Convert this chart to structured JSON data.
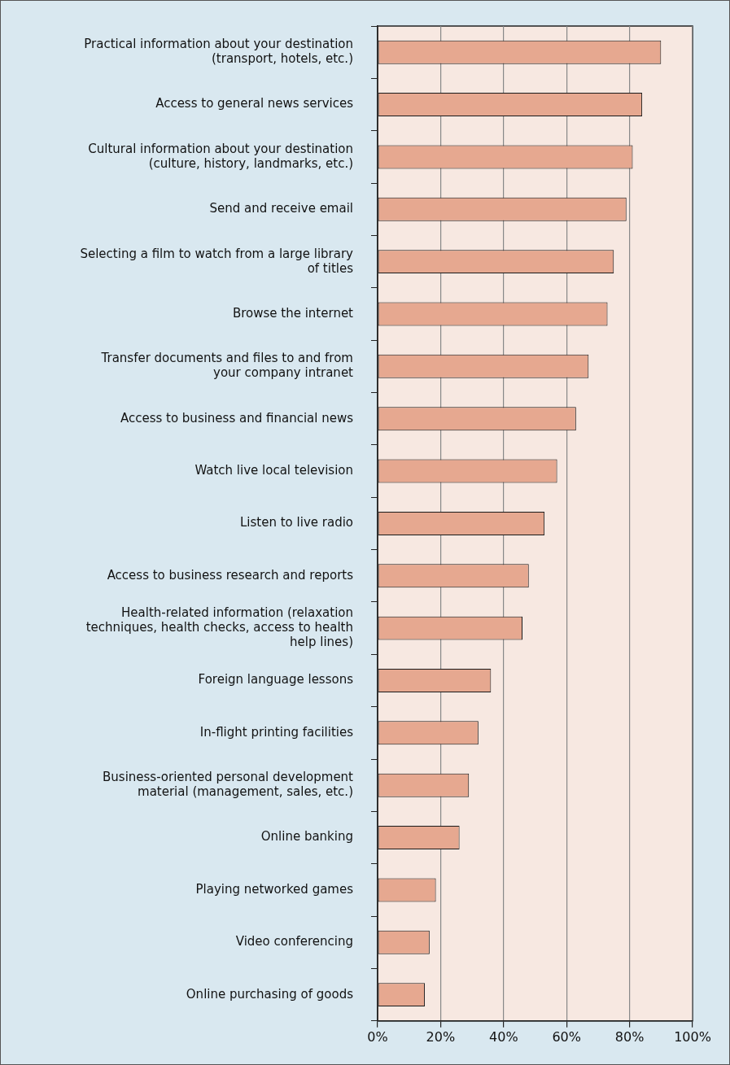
{
  "chart_data": {
    "type": "bar",
    "orientation": "horizontal",
    "categories": [
      "Practical information about your destination (transport, hotels, etc.)",
      "Access to general news services",
      "Cultural information about your destination (culture, history, landmarks, etc.)",
      "Send and receive email",
      "Selecting a film to watch from a large library of titles",
      "Browse the internet",
      "Transfer documents and files to and from your company intranet",
      "Access to business and financial news",
      "Watch live local television",
      "Listen to live radio",
      "Access to business research and reports",
      "Health-related information (relaxation techniques, health checks, access to health help lines)",
      "Foreign language lessons",
      "In-flight printing facilities",
      "Business-oriented personal development material (management, sales, etc.)",
      "Online banking",
      "Playing networked games",
      "Video conferencing",
      "Online purchasing of goods"
    ],
    "values": [
      90,
      84,
      81,
      79,
      75,
      73,
      67,
      63,
      57,
      53,
      48,
      46,
      36,
      32,
      29,
      26,
      18.5,
      16.5,
      15
    ],
    "color": "#e6a890",
    "xlim": [
      0,
      100
    ],
    "xticks": [
      {
        "value": 0,
        "label": "0%"
      },
      {
        "value": 20,
        "label": "20%"
      },
      {
        "value": 40,
        "label": "40%"
      },
      {
        "value": 60,
        "label": "60%"
      },
      {
        "value": 80,
        "label": "80%"
      },
      {
        "value": 100,
        "label": "100%"
      }
    ],
    "grid": "x",
    "legend": false
  }
}
